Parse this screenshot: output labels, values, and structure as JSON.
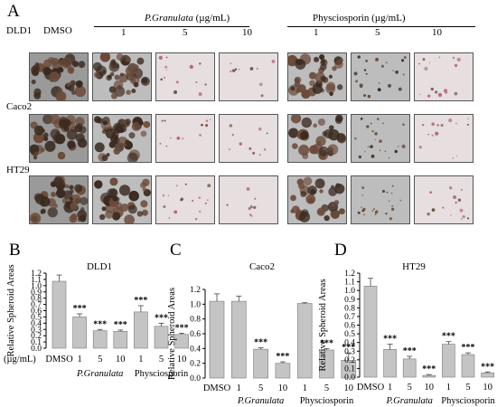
{
  "panel_a": {
    "letter": "A",
    "header_dmso": "DMSO",
    "header_group1": "P.Granulata (µg/mL)",
    "header_group1_name": "P.Granulata",
    "header_group1_unit": " (µg/mL)",
    "header_group2": "Physciosporin (µg/mL)",
    "doses": [
      "1",
      "5",
      "10"
    ],
    "rows": [
      {
        "label": "DLD1",
        "densities": [
          0.9,
          0.8,
          0.15,
          0.05,
          0.75,
          0.35,
          0.2
        ]
      },
      {
        "label": "Caco2",
        "densities": [
          0.85,
          0.85,
          0.1,
          0.05,
          0.6,
          0.35,
          0.15
        ]
      },
      {
        "label": "HT29",
        "densities": [
          0.9,
          0.6,
          0.2,
          0.02,
          0.65,
          0.35,
          0.15
        ]
      }
    ]
  },
  "chart_data": [
    {
      "type": "bar",
      "panel": "B",
      "title": "DLD1",
      "ylabel": "Relative Spheroid Areas",
      "unit_label": "(µg/mL)",
      "categories": [
        "DMSO",
        "1",
        "5",
        "10",
        "1",
        "5",
        "10"
      ],
      "group_labels": [
        "P.Granulata",
        "Physciosporin"
      ],
      "values": [
        1.07,
        0.5,
        0.28,
        0.27,
        0.58,
        0.35,
        0.22
      ],
      "errors": [
        0.1,
        0.05,
        0.02,
        0.02,
        0.1,
        0.05,
        0.02
      ],
      "significance": [
        "",
        "***",
        "***",
        "***",
        "***",
        "***",
        "***"
      ],
      "ylim": [
        0,
        1.2
      ],
      "yticks": [
        "0.0",
        "0.1",
        "0.2",
        "0.3",
        "0.4",
        "0.5",
        "0.6",
        "0.7",
        "0.8",
        "0.9",
        "1.0",
        "1.1",
        "1.2"
      ]
    },
    {
      "type": "bar",
      "panel": "C",
      "title": "Caco2",
      "ylabel": "Relative Spheroid Areas",
      "categories": [
        "DMSO",
        "1",
        "5",
        "10",
        "1",
        "5",
        "10"
      ],
      "group_labels": [
        "P.Granulata",
        "Physciosporin"
      ],
      "values": [
        1.04,
        1.04,
        0.39,
        0.2,
        1.01,
        0.38,
        0.24
      ],
      "errors": [
        0.1,
        0.07,
        0.02,
        0.02,
        0.01,
        0.02,
        0.1
      ],
      "significance": [
        "",
        "",
        "***",
        "***",
        "",
        "***",
        "***"
      ],
      "ylim": [
        0,
        1.2
      ],
      "yticks": [
        "0.0",
        "0.2",
        "0.4",
        "0.6",
        "0.8",
        "1.0",
        "1.2"
      ]
    },
    {
      "type": "bar",
      "panel": "D",
      "title": "HT29",
      "ylabel": "Relative Spheroid Areas",
      "categories": [
        "DMSO",
        "1",
        "5",
        "10",
        "1",
        "5",
        "10"
      ],
      "group_labels": [
        "P.Granulata",
        "Physciosporin"
      ],
      "values": [
        1.05,
        0.32,
        0.21,
        0.02,
        0.38,
        0.26,
        0.05
      ],
      "errors": [
        0.09,
        0.06,
        0.03,
        0.01,
        0.03,
        0.02,
        0.01
      ],
      "significance": [
        "",
        "***",
        "***",
        "***",
        "***",
        "***",
        "***"
      ],
      "ylim": [
        0,
        1.2
      ],
      "yticks": [
        "0.0",
        "0.1",
        "0.2",
        "0.3",
        "0.4",
        "0.5",
        "0.6",
        "0.7",
        "0.8",
        "0.9",
        "1.0",
        "1.1",
        "1.2"
      ]
    }
  ],
  "colors": {
    "bar_fill": "#c4c4c4",
    "bar_stroke": "#7a7a7a",
    "spheroid_dark": "#3a2a20",
    "spheroid_brown": "#6b4a38",
    "spheroid_pink": "#b5647a",
    "tile_bg": "#cfcfcf"
  }
}
